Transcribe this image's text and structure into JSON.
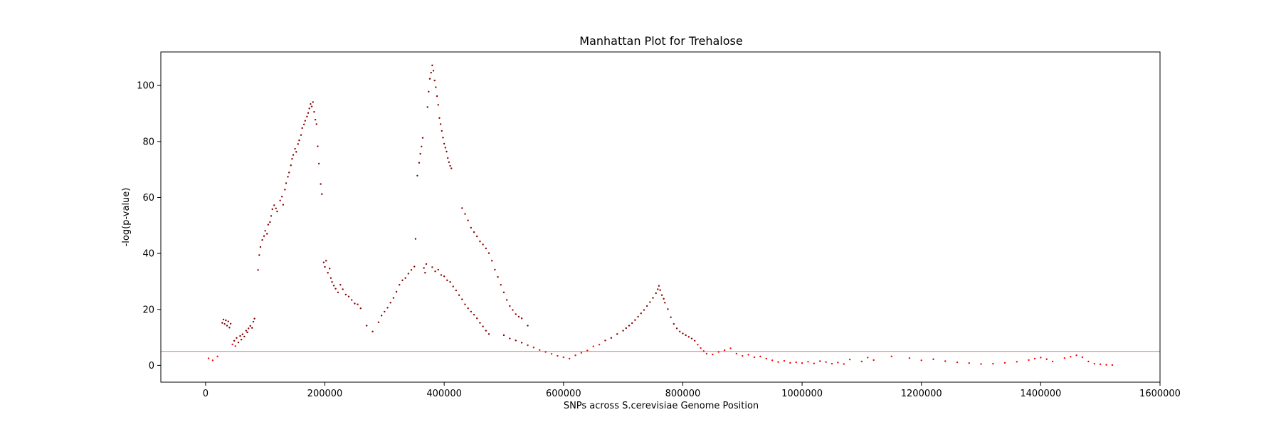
{
  "chart_data": {
    "type": "scatter",
    "title": "Manhattan Plot for Trehalose",
    "xlabel": "SNPs across S.cerevisiae Genome Position",
    "ylabel": "-log(p-value)",
    "xlim": [
      -75000,
      1600000
    ],
    "ylim": [
      -6,
      112
    ],
    "x_ticks": [
      0,
      200000,
      400000,
      600000,
      800000,
      1000000,
      1200000,
      1400000,
      1600000
    ],
    "x_tick_labels": [
      "0",
      "200000",
      "400000",
      "600000",
      "800000",
      "1000000",
      "1200000",
      "1400000",
      "1600000"
    ],
    "y_ticks": [
      0,
      20,
      40,
      60,
      80,
      100
    ],
    "y_tick_labels": [
      "0",
      "20",
      "40",
      "60",
      "80",
      "100"
    ],
    "grid": false,
    "colors": {
      "point": "#ff0000",
      "point_dark": "#8b0000",
      "threshold": "#ff6666"
    },
    "threshold": 5,
    "series": [
      {
        "points": [
          [
            5000,
            2.5
          ],
          [
            12000,
            1.8
          ],
          [
            20000,
            3.2
          ],
          [
            28000,
            15.2
          ],
          [
            30000,
            16.4
          ],
          [
            32000,
            14.8
          ],
          [
            34000,
            16.1
          ],
          [
            36000,
            14.2
          ],
          [
            38000,
            15.7
          ],
          [
            40000,
            13.5
          ],
          [
            42000,
            14.9
          ],
          [
            45000,
            7.5
          ],
          [
            48000,
            8.8
          ],
          [
            50000,
            6.9
          ],
          [
            52000,
            9.8
          ],
          [
            55000,
            8.2
          ],
          [
            58000,
            10.5
          ],
          [
            60000,
            9.2
          ],
          [
            62000,
            11.1
          ],
          [
            65000,
            10.3
          ],
          [
            68000,
            12.4
          ],
          [
            70000,
            11.8
          ],
          [
            72000,
            13.2
          ],
          [
            75000,
            14.1
          ],
          [
            78000,
            13.4
          ],
          [
            80000,
            15.6
          ],
          [
            82000,
            16.7
          ],
          [
            88000,
            34.1
          ],
          [
            90000,
            39.4
          ],
          [
            92000,
            42.3
          ],
          [
            95000,
            44.8
          ],
          [
            98000,
            46.2
          ],
          [
            100000,
            48.1
          ],
          [
            103000,
            47.0
          ],
          [
            105000,
            50.3
          ],
          [
            108000,
            51.2
          ],
          [
            110000,
            53.4
          ],
          [
            112000,
            55.8
          ],
          [
            115000,
            57.2
          ],
          [
            118000,
            56.1
          ],
          [
            120000,
            55.0
          ],
          [
            125000,
            58.9
          ],
          [
            128000,
            60.3
          ],
          [
            130000,
            57.4
          ],
          [
            133000,
            62.8
          ],
          [
            135000,
            65.1
          ],
          [
            138000,
            67.4
          ],
          [
            140000,
            68.9
          ],
          [
            143000,
            71.5
          ],
          [
            145000,
            73.8
          ],
          [
            147000,
            75.2
          ],
          [
            150000,
            77.4
          ],
          [
            152000,
            76.3
          ],
          [
            155000,
            79.1
          ],
          [
            157000,
            80.4
          ],
          [
            160000,
            82.3
          ],
          [
            162000,
            84.8
          ],
          [
            165000,
            86.1
          ],
          [
            167000,
            87.4
          ],
          [
            170000,
            88.9
          ],
          [
            172000,
            90.2
          ],
          [
            174000,
            91.8
          ],
          [
            176000,
            93.4
          ],
          [
            178000,
            92.5
          ],
          [
            180000,
            94.1
          ],
          [
            182000,
            90.6
          ],
          [
            184000,
            87.8
          ],
          [
            186000,
            86.2
          ],
          [
            188000,
            78.3
          ],
          [
            190000,
            72.1
          ],
          [
            193000,
            64.8
          ],
          [
            195000,
            61.2
          ],
          [
            198000,
            36.8
          ],
          [
            200000,
            35.2
          ],
          [
            202000,
            37.4
          ],
          [
            205000,
            33.1
          ],
          [
            208000,
            34.6
          ],
          [
            210000,
            31.2
          ],
          [
            212000,
            29.8
          ],
          [
            215000,
            28.5
          ],
          [
            218000,
            27.4
          ],
          [
            222000,
            26.1
          ],
          [
            226000,
            28.8
          ],
          [
            230000,
            27.2
          ],
          [
            235000,
            25.3
          ],
          [
            240000,
            24.6
          ],
          [
            245000,
            23.4
          ],
          [
            250000,
            22.1
          ],
          [
            255000,
            21.8
          ],
          [
            260000,
            20.4
          ],
          [
            270000,
            14.2
          ],
          [
            280000,
            12.1
          ],
          [
            290000,
            15.4
          ],
          [
            295000,
            17.8
          ],
          [
            300000,
            19.2
          ],
          [
            305000,
            20.6
          ],
          [
            310000,
            22.4
          ],
          [
            315000,
            24.1
          ],
          [
            320000,
            26.3
          ],
          [
            325000,
            28.8
          ],
          [
            330000,
            30.4
          ],
          [
            335000,
            31.2
          ],
          [
            340000,
            32.8
          ],
          [
            345000,
            34.1
          ],
          [
            350000,
            35.3
          ],
          [
            352000,
            45.2
          ],
          [
            355000,
            67.8
          ],
          [
            358000,
            72.4
          ],
          [
            360000,
            75.6
          ],
          [
            362000,
            78.2
          ],
          [
            364000,
            81.3
          ],
          [
            366000,
            34.8
          ],
          [
            368000,
            33.1
          ],
          [
            370000,
            36.2
          ],
          [
            372000,
            92.3
          ],
          [
            374000,
            97.8
          ],
          [
            376000,
            102.4
          ],
          [
            378000,
            104.6
          ],
          [
            380000,
            107.2
          ],
          [
            382000,
            105.3
          ],
          [
            384000,
            101.8
          ],
          [
            386000,
            99.4
          ],
          [
            388000,
            96.2
          ],
          [
            390000,
            93.1
          ],
          [
            392000,
            88.4
          ],
          [
            394000,
            86.2
          ],
          [
            396000,
            83.8
          ],
          [
            398000,
            81.4
          ],
          [
            400000,
            79.2
          ],
          [
            402000,
            77.8
          ],
          [
            404000,
            76.4
          ],
          [
            406000,
            74.1
          ],
          [
            408000,
            72.6
          ],
          [
            410000,
            71.3
          ],
          [
            412000,
            70.4
          ],
          [
            380000,
            35.1
          ],
          [
            385000,
            33.6
          ],
          [
            390000,
            34.2
          ],
          [
            395000,
            32.3
          ],
          [
            400000,
            31.8
          ],
          [
            405000,
            30.4
          ],
          [
            410000,
            29.8
          ],
          [
            415000,
            28.2
          ],
          [
            420000,
            26.8
          ],
          [
            425000,
            25.1
          ],
          [
            430000,
            23.6
          ],
          [
            435000,
            21.8
          ],
          [
            440000,
            20.4
          ],
          [
            445000,
            19.2
          ],
          [
            450000,
            18.1
          ],
          [
            455000,
            16.8
          ],
          [
            460000,
            15.2
          ],
          [
            465000,
            13.9
          ],
          [
            470000,
            12.4
          ],
          [
            475000,
            11.2
          ],
          [
            430000,
            56.2
          ],
          [
            435000,
            54.1
          ],
          [
            440000,
            51.8
          ],
          [
            445000,
            49.2
          ],
          [
            450000,
            47.6
          ],
          [
            455000,
            46.1
          ],
          [
            460000,
            44.3
          ],
          [
            465000,
            43.2
          ],
          [
            470000,
            41.8
          ],
          [
            475000,
            40.1
          ],
          [
            480000,
            37.4
          ],
          [
            485000,
            34.2
          ],
          [
            490000,
            31.6
          ],
          [
            495000,
            28.8
          ],
          [
            500000,
            26.1
          ],
          [
            505000,
            23.4
          ],
          [
            510000,
            21.2
          ],
          [
            515000,
            19.8
          ],
          [
            520000,
            18.3
          ],
          [
            525000,
            17.4
          ],
          [
            530000,
            16.8
          ],
          [
            540000,
            14.2
          ],
          [
            500000,
            10.8
          ],
          [
            510000,
            9.6
          ],
          [
            520000,
            8.9
          ],
          [
            530000,
            8.1
          ],
          [
            540000,
            7.2
          ],
          [
            550000,
            6.4
          ],
          [
            560000,
            5.5
          ],
          [
            570000,
            4.8
          ],
          [
            580000,
            4.1
          ],
          [
            590000,
            3.4
          ],
          [
            600000,
            2.9
          ],
          [
            610000,
            2.4
          ],
          [
            620000,
            3.6
          ],
          [
            630000,
            4.5
          ],
          [
            640000,
            5.3
          ],
          [
            650000,
            6.8
          ],
          [
            660000,
            7.4
          ],
          [
            670000,
            8.9
          ],
          [
            680000,
            9.8
          ],
          [
            690000,
            11.2
          ],
          [
            700000,
            12.4
          ],
          [
            705000,
            13.3
          ],
          [
            710000,
            14.2
          ],
          [
            715000,
            15.1
          ],
          [
            720000,
            16.2
          ],
          [
            725000,
            17.4
          ],
          [
            730000,
            18.6
          ],
          [
            735000,
            19.8
          ],
          [
            740000,
            21.2
          ],
          [
            745000,
            22.6
          ],
          [
            750000,
            24.1
          ],
          [
            755000,
            25.8
          ],
          [
            758000,
            27.2
          ],
          [
            760000,
            28.4
          ],
          [
            762000,
            26.9
          ],
          [
            765000,
            25.1
          ],
          [
            768000,
            23.8
          ],
          [
            770000,
            22.4
          ],
          [
            775000,
            20.1
          ],
          [
            780000,
            17.2
          ],
          [
            785000,
            14.8
          ],
          [
            790000,
            13.2
          ],
          [
            795000,
            12.1
          ],
          [
            800000,
            11.4
          ],
          [
            805000,
            10.8
          ],
          [
            810000,
            10.2
          ],
          [
            815000,
            9.6
          ],
          [
            820000,
            8.8
          ],
          [
            825000,
            7.4
          ],
          [
            830000,
            6.2
          ],
          [
            835000,
            5.1
          ],
          [
            840000,
            4.2
          ],
          [
            850000,
            3.9
          ],
          [
            860000,
            4.8
          ],
          [
            870000,
            5.4
          ],
          [
            880000,
            6.1
          ],
          [
            890000,
            4.2
          ],
          [
            900000,
            3.4
          ],
          [
            910000,
            3.8
          ],
          [
            920000,
            2.9
          ],
          [
            930000,
            3.2
          ],
          [
            940000,
            2.4
          ],
          [
            950000,
            1.8
          ],
          [
            960000,
            1.2
          ],
          [
            970000,
            1.6
          ],
          [
            980000,
            0.9
          ],
          [
            990000,
            1.1
          ],
          [
            1000000,
            0.8
          ],
          [
            1010000,
            1.3
          ],
          [
            1020000,
            0.7
          ],
          [
            1030000,
            1.5
          ],
          [
            1040000,
            1.2
          ],
          [
            1050000,
            0.6
          ],
          [
            1060000,
            1.0
          ],
          [
            1070000,
            0.5
          ],
          [
            1080000,
            2.1
          ],
          [
            1100000,
            1.4
          ],
          [
            1110000,
            2.8
          ],
          [
            1120000,
            1.9
          ],
          [
            1150000,
            3.2
          ],
          [
            1180000,
            2.6
          ],
          [
            1200000,
            1.8
          ],
          [
            1220000,
            2.2
          ],
          [
            1240000,
            1.5
          ],
          [
            1260000,
            1.1
          ],
          [
            1280000,
            0.8
          ],
          [
            1300000,
            0.5
          ],
          [
            1320000,
            0.6
          ],
          [
            1340000,
            0.9
          ],
          [
            1360000,
            1.3
          ],
          [
            1380000,
            1.9
          ],
          [
            1390000,
            2.4
          ],
          [
            1400000,
            2.8
          ],
          [
            1410000,
            2.2
          ],
          [
            1420000,
            1.4
          ],
          [
            1440000,
            2.6
          ],
          [
            1450000,
            3.1
          ],
          [
            1460000,
            3.6
          ],
          [
            1470000,
            2.9
          ],
          [
            1480000,
            1.4
          ],
          [
            1490000,
            0.6
          ],
          [
            1500000,
            0.4
          ],
          [
            1510000,
            0.2
          ],
          [
            1520000,
            0.1
          ]
        ]
      }
    ]
  }
}
